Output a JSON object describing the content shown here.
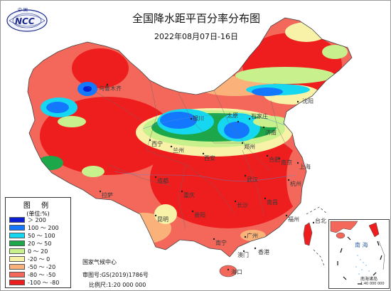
{
  "title": "全国降水距平百分率分布图",
  "subtitle": "2022年08月07日-16日",
  "logo": {
    "top_text": "中 国",
    "main_text": "NCC",
    "icon": "ncc-emblem-logo"
  },
  "legend": {
    "title": "图 例",
    "unit": "(单位:%)",
    "items": [
      {
        "label": "＞ 200",
        "color": "#0a1fd1"
      },
      {
        "label": "100 ～ 200",
        "color": "#1478ff"
      },
      {
        "label": "50 ～ 100",
        "color": "#15d8f0"
      },
      {
        "label": "20 ～ 50",
        "color": "#1ca84a"
      },
      {
        "label": "0 ～ 20",
        "color": "#c8f08c"
      },
      {
        "label": "-20 ～ 0",
        "color": "#f7f2a8"
      },
      {
        "label": "-50 ～ -20",
        "color": "#fbb27a"
      },
      {
        "label": "-80 ～ -50",
        "color": "#f3685a"
      },
      {
        "label": "-100 ～ -80",
        "color": "#ee1e1e"
      }
    ]
  },
  "credits": {
    "agency": "国家气候中心",
    "approval": "审图号:GS(2019)1786号",
    "scale": "比例尺:1:20 000 000"
  },
  "inset": {
    "label": "南 海",
    "islands": "南海诸岛",
    "scale": "1:40 000 000"
  },
  "cities": [
    {
      "name": "沈阳"
    },
    {
      "name": "太原"
    },
    {
      "name": "石家庄"
    },
    {
      "name": "济南"
    },
    {
      "name": "郑州"
    },
    {
      "name": "西安"
    },
    {
      "name": "武汉"
    },
    {
      "name": "合肥"
    },
    {
      "name": "南京"
    },
    {
      "name": "上海"
    },
    {
      "name": "杭州"
    },
    {
      "name": "成都"
    },
    {
      "name": "重庆"
    },
    {
      "name": "贵阳"
    },
    {
      "name": "长沙"
    },
    {
      "name": "南昌"
    },
    {
      "name": "福州"
    },
    {
      "name": "台北"
    },
    {
      "name": "南宁"
    },
    {
      "name": "广州"
    },
    {
      "name": "香港"
    },
    {
      "name": "澳门"
    },
    {
      "name": "海口"
    },
    {
      "name": "昆明"
    },
    {
      "name": "拉萨"
    },
    {
      "name": "西宁"
    },
    {
      "name": "兰州"
    },
    {
      "name": "银川"
    },
    {
      "name": "乌鲁木齐"
    }
  ]
}
